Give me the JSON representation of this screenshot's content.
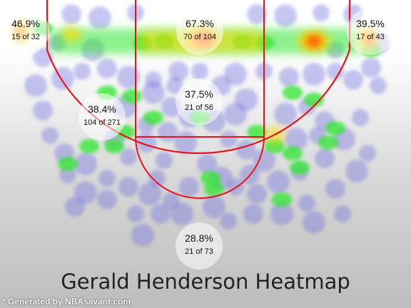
{
  "title": "Gerald Henderson Heatmap",
  "footer": "* Generated by NBAsavant.com",
  "colors": {
    "court_line": "#e8141b",
    "hot": "#ff2a00",
    "warm": "#ffd800",
    "mid": "#2ee62e",
    "cool": "#6a6ae0"
  },
  "chart_data": {
    "type": "heatmap",
    "title": "Gerald Henderson Heatmap",
    "zones": [
      {
        "id": "left-corner-three",
        "pct": "46.9%",
        "made": 15,
        "attempts": 32,
        "label": "15 of 32"
      },
      {
        "id": "restricted-area",
        "pct": "67.3%",
        "made": 70,
        "attempts": 104,
        "label": "70 of 104"
      },
      {
        "id": "right-corner-three",
        "pct": "39.5%",
        "made": 17,
        "attempts": 43,
        "label": "17 of 43"
      },
      {
        "id": "mid-range",
        "pct": "38.4%",
        "made": 104,
        "attempts": 271,
        "label": "104 of 271"
      },
      {
        "id": "paint-non-ra",
        "pct": "37.5%",
        "made": 21,
        "attempts": 56,
        "label": "21 of 56"
      },
      {
        "id": "above-break-three",
        "pct": "28.8%",
        "made": 21,
        "attempts": 73,
        "label": "21 of 73"
      }
    ]
  }
}
